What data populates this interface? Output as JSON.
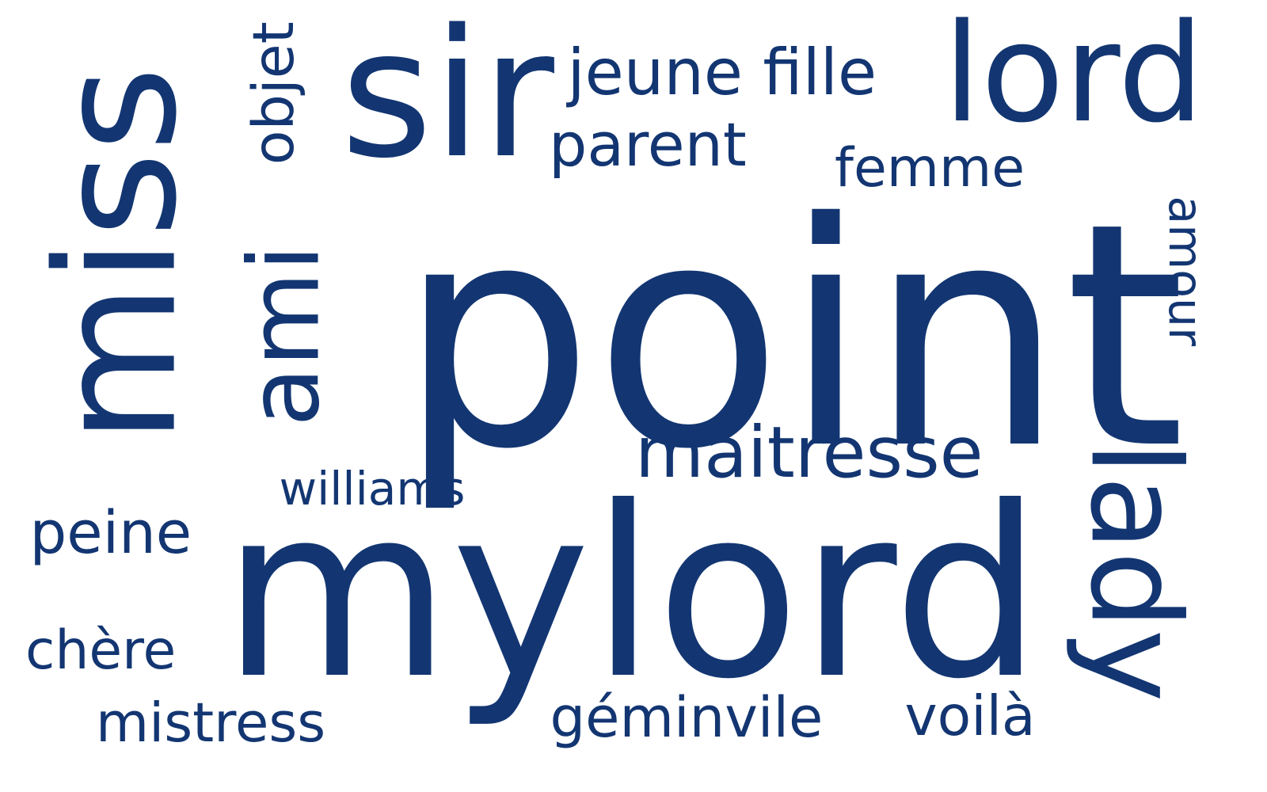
{
  "word_cloud": {
    "color": "#133672",
    "words": [
      {
        "text": "point",
        "orientation": "horizontal"
      },
      {
        "text": "mylord",
        "orientation": "horizontal"
      },
      {
        "text": "miss",
        "orientation": "vertical-up"
      },
      {
        "text": "lord",
        "orientation": "horizontal"
      },
      {
        "text": "lady",
        "orientation": "vertical-down"
      },
      {
        "text": "sir",
        "orientation": "horizontal"
      },
      {
        "text": "ami",
        "orientation": "vertical-up"
      },
      {
        "text": "maitresse",
        "orientation": "horizontal"
      },
      {
        "text": "parent",
        "orientation": "horizontal"
      },
      {
        "text": "géminvile",
        "orientation": "horizontal"
      },
      {
        "text": "jeune fille",
        "orientation": "horizontal"
      },
      {
        "text": "femme",
        "orientation": "horizontal"
      },
      {
        "text": "peine",
        "orientation": "horizontal"
      },
      {
        "text": "chère",
        "orientation": "horizontal"
      },
      {
        "text": "mistress",
        "orientation": "horizontal"
      },
      {
        "text": "voilà",
        "orientation": "horizontal"
      },
      {
        "text": "objet",
        "orientation": "vertical-up"
      },
      {
        "text": "amour",
        "orientation": "vertical-down"
      },
      {
        "text": "williams",
        "orientation": "horizontal"
      }
    ]
  }
}
